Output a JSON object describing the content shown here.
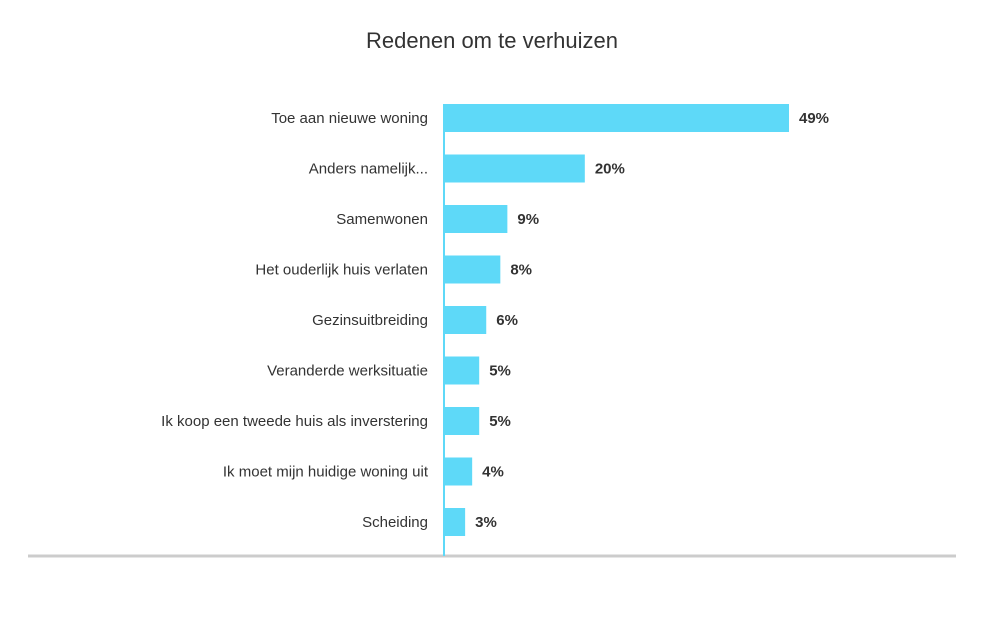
{
  "chart_data": {
    "type": "bar",
    "orientation": "horizontal",
    "title": "Redenen om te verhuizen",
    "categories": [
      "Toe aan nieuwe woning",
      "Anders namelijk...",
      "Samenwonen",
      "Het ouderlijk huis verlaten",
      "Gezinsuitbreiding",
      "Veranderde werksituatie",
      "Ik koop een tweede huis als inverstering",
      "Ik moet mijn huidige woning uit",
      "Scheiding"
    ],
    "values": [
      49,
      20,
      9,
      8,
      6,
      5,
      5,
      4,
      3
    ],
    "value_labels": [
      "49%",
      "20%",
      "9%",
      "8%",
      "6%",
      "5%",
      "5%",
      "4%",
      "3%"
    ],
    "unit": "%",
    "xlim": [
      0,
      49
    ],
    "grid": false,
    "legend": "none",
    "colors": {
      "bar": "#5ed9f8",
      "axis": "#cccccc",
      "text": "#333333"
    }
  }
}
